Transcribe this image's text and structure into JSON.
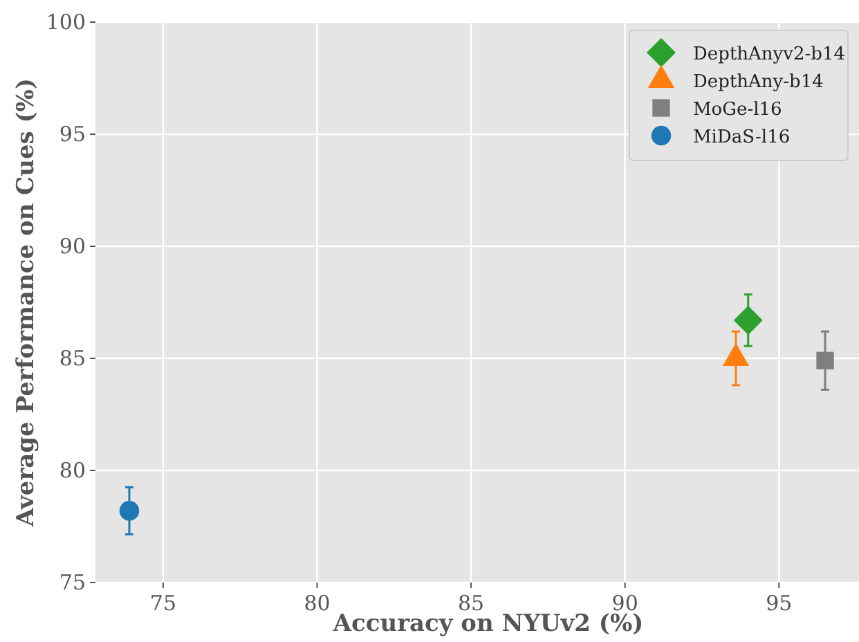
{
  "chart_data": {
    "type": "scatter",
    "xlabel": "Accuracy on NYUv2 (%)",
    "ylabel": "Average Performance on Cues (%)",
    "xlim": [
      72.8,
      97.6
    ],
    "xticks": [
      75,
      80,
      85,
      90,
      95
    ],
    "ylim": [
      75,
      100
    ],
    "yticks": [
      75,
      80,
      85,
      90,
      95,
      100
    ],
    "grid": true,
    "legend": "top right",
    "series": [
      {
        "name": "DepthAnyv2-b14",
        "color": "#2ca02c",
        "marker": "diamond",
        "x": [
          94.0
        ],
        "values": [
          86.7
        ],
        "errors": [
          1.15
        ]
      },
      {
        "name": "DepthAny-b14",
        "color": "#ff7f0e",
        "marker": "triangle",
        "x": [
          93.6
        ],
        "values": [
          85.0
        ],
        "errors": [
          1.2
        ]
      },
      {
        "name": "MoGe-l16",
        "color": "#7f7f7f",
        "marker": "square",
        "x": [
          96.5
        ],
        "values": [
          84.9
        ],
        "errors": [
          1.3
        ]
      },
      {
        "name": "MiDaS-l16",
        "color": "#1f77b4",
        "marker": "circle",
        "x": [
          73.9
        ],
        "values": [
          78.2
        ],
        "errors": [
          1.05
        ]
      }
    ]
  }
}
